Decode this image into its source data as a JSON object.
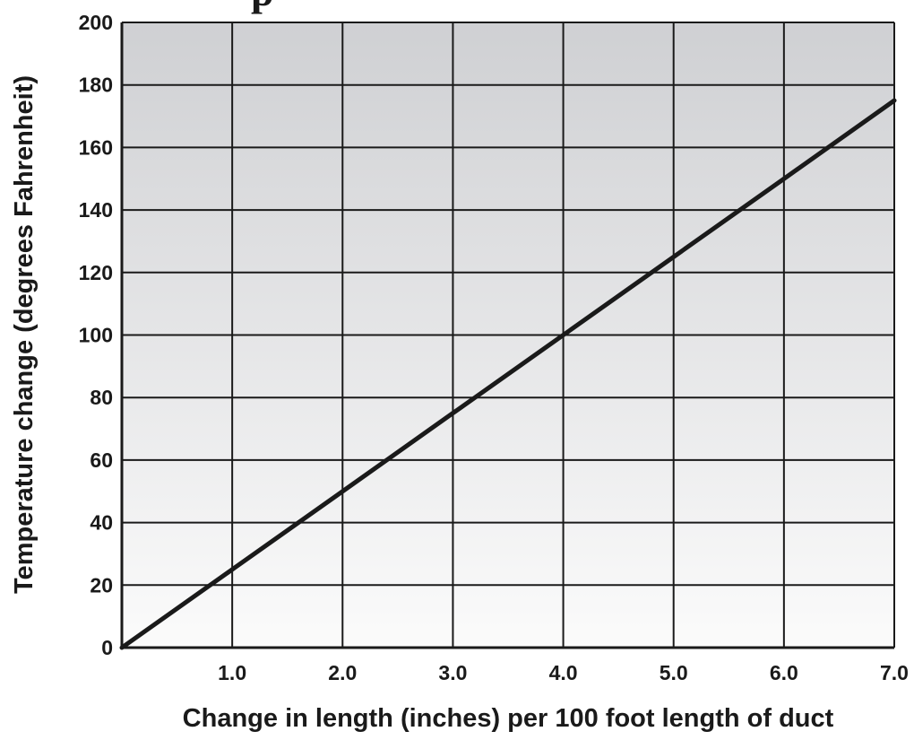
{
  "colors": {
    "plot_bg_top": "#cfd0d3",
    "plot_bg_bottom": "#fbfbfb",
    "grid": "#1a1a1a",
    "line": "#1a1a1a",
    "text": "#1a1a1a"
  },
  "chart_data": {
    "type": "line",
    "title": "",
    "xlabel": "Change in length (inches) per 100 foot length of duct",
    "ylabel": "Temperature change (degrees Fahrenheit)",
    "xlim": [
      0,
      7.0
    ],
    "ylim": [
      0,
      200
    ],
    "x_ticks": [
      1.0,
      2.0,
      3.0,
      4.0,
      5.0,
      6.0,
      7.0
    ],
    "x_tick_labels": [
      "1.0",
      "2.0",
      "3.0",
      "4.0",
      "5.0",
      "6.0",
      "7.0"
    ],
    "y_ticks": [
      0,
      20,
      40,
      60,
      80,
      100,
      120,
      140,
      160,
      180,
      200
    ],
    "y_tick_labels": [
      "0",
      "20",
      "40",
      "60",
      "80",
      "100",
      "120",
      "140",
      "160",
      "180",
      "200"
    ],
    "grid": true,
    "legend": "none",
    "background": "vertical gradient, darker at top",
    "series": [
      {
        "x": [
          0,
          1.0,
          2.0,
          3.0,
          4.0,
          5.0,
          6.0,
          7.0
        ],
        "y": [
          0,
          25,
          50,
          75,
          100,
          125,
          150,
          175
        ]
      }
    ]
  }
}
